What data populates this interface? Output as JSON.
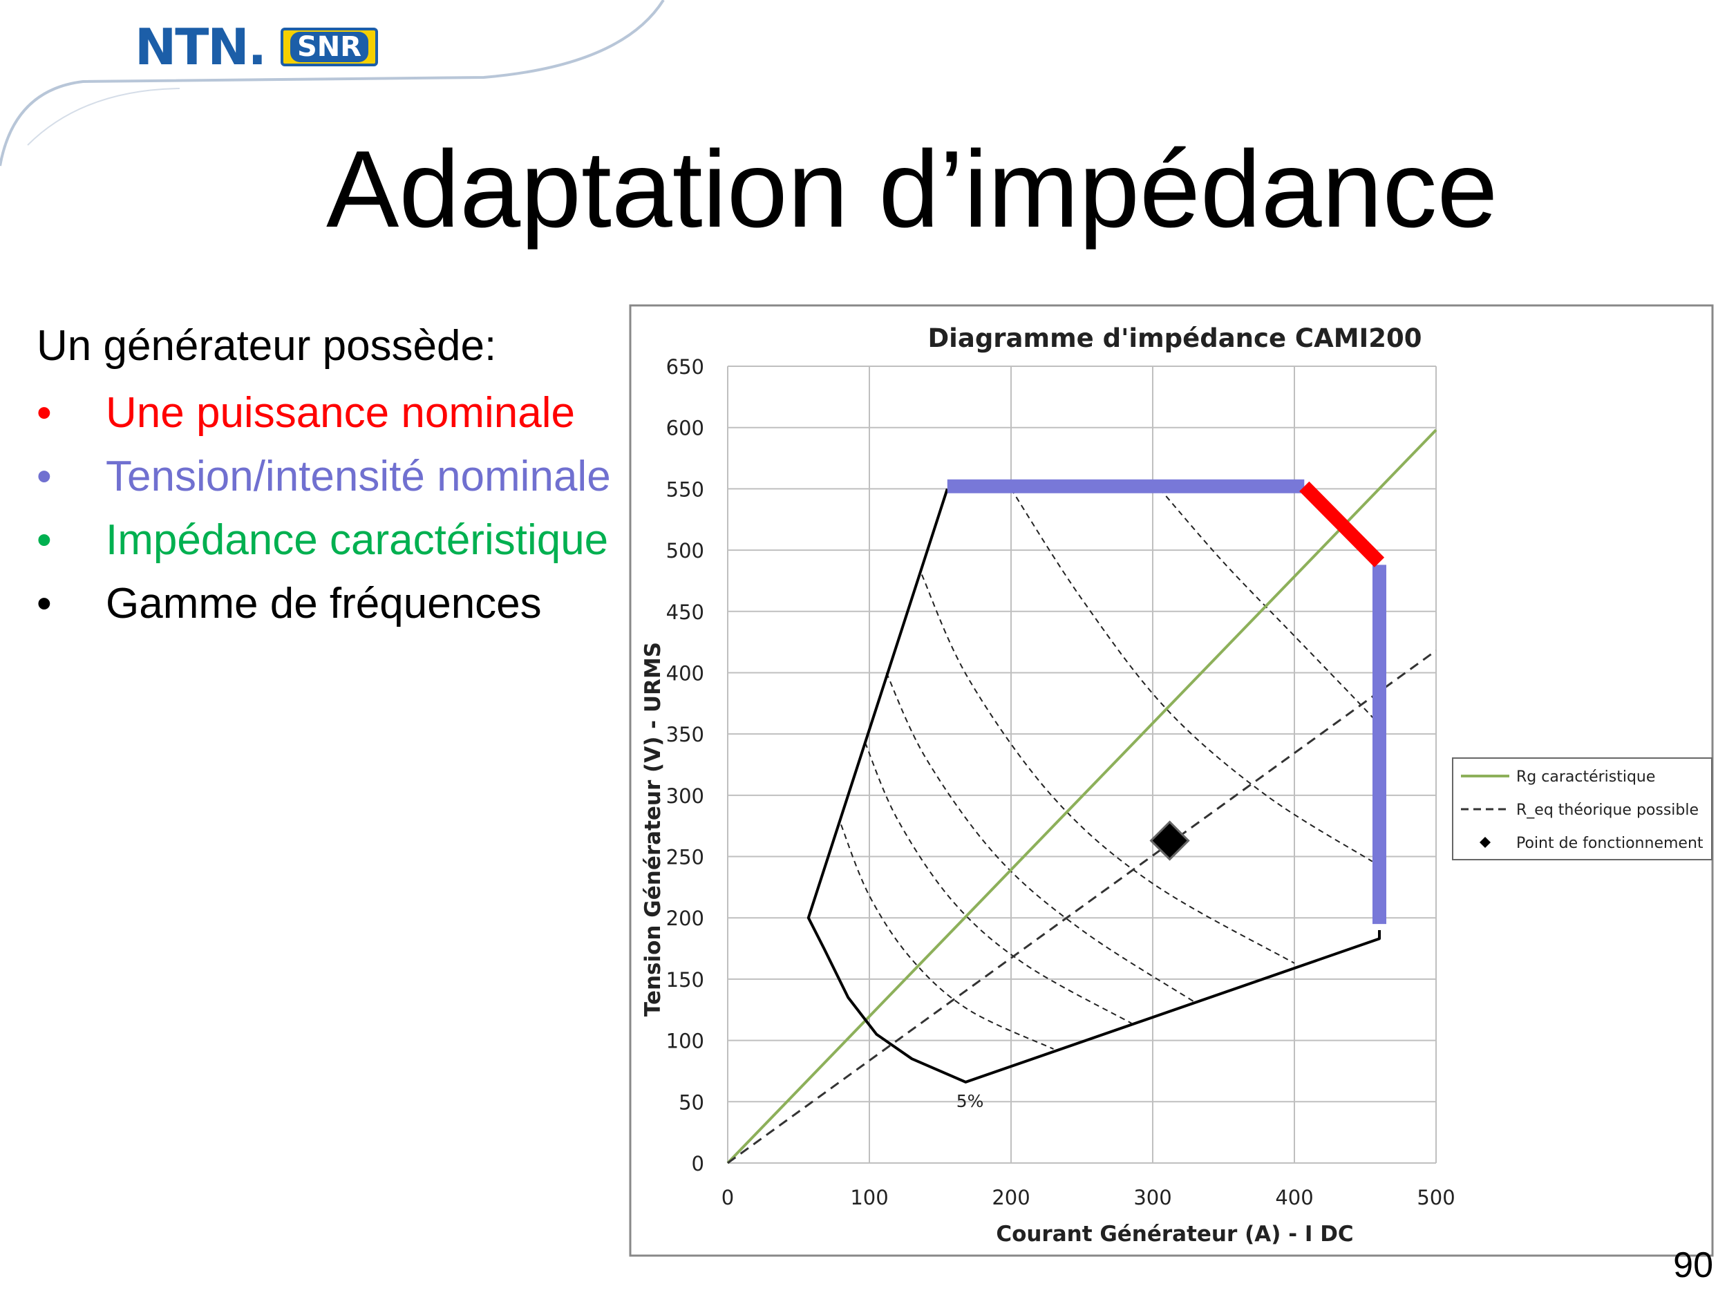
{
  "logo": {
    "ntn_text": "NTN.",
    "snr_text": "SNR"
  },
  "slide": {
    "title": "Adaptation d’impédance",
    "intro": "Un générateur possède:",
    "bullets": [
      {
        "text": "Une puissance nominale",
        "color": "#ff0000"
      },
      {
        "text": "Tension/intensité nominale",
        "color": "#7070d0"
      },
      {
        "text": "Impédance caractéristique",
        "color": "#00b050"
      },
      {
        "text": "Gamme de fréquences",
        "color": "#000000"
      }
    ],
    "bullet_glyph": "•",
    "page_number": "90"
  },
  "chart_data": {
    "type": "line",
    "title": "Diagramme d'impédance CAMI200",
    "xlabel": "Courant  Générateur (A) - I DC",
    "ylabel": "Tension  Générateur (V) - URMS",
    "xlim": [
      0,
      500
    ],
    "ylim": [
      0,
      650
    ],
    "xticks": [
      0,
      100,
      200,
      300,
      400,
      500
    ],
    "yticks": [
      0,
      50,
      100,
      150,
      200,
      250,
      300,
      350,
      400,
      450,
      500,
      550,
      600,
      650
    ],
    "grid": true,
    "legend_position": "right",
    "legend": [
      {
        "label": "Rg caractéristique",
        "style": "solid-line",
        "color": "#8db05a"
      },
      {
        "label": "R_eq théorique possible",
        "style": "dashed-line",
        "color": "#333333"
      },
      {
        "label": "Point de fonctionnement",
        "style": "diamond-marker",
        "color": "#000000"
      }
    ],
    "annotations": [
      {
        "text": "5%",
        "x": 172,
        "y": 48
      }
    ],
    "series": [
      {
        "name": "Rg caractéristique",
        "kind": "line",
        "color": "#8db05a",
        "points": [
          [
            0,
            0
          ],
          [
            500,
            598
          ]
        ]
      },
      {
        "name": "R_eq théorique possible",
        "kind": "dashed-line",
        "color": "#333333",
        "points": [
          [
            0,
            0
          ],
          [
            500,
            418
          ]
        ]
      },
      {
        "name": "Point de fonctionnement",
        "kind": "marker",
        "color": "#000000",
        "points": [
          [
            312,
            263
          ]
        ]
      }
    ],
    "operating_envelope": [
      [
        155,
        550
      ],
      [
        57,
        200
      ],
      [
        68,
        175
      ],
      [
        85,
        135
      ],
      [
        105,
        105
      ],
      [
        130,
        85
      ],
      [
        168,
        66
      ],
      [
        460,
        183
      ],
      [
        460,
        190
      ]
    ],
    "iso_curves": [
      [
        [
          80,
          276
        ],
        [
          100,
          218
        ],
        [
          130,
          166
        ],
        [
          170,
          125
        ],
        [
          230,
          93
        ]
      ],
      [
        [
          97,
          343
        ],
        [
          120,
          280
        ],
        [
          160,
          212
        ],
        [
          210,
          162
        ],
        [
          285,
          114
        ]
      ],
      [
        [
          112,
          400
        ],
        [
          140,
          330
        ],
        [
          190,
          250
        ],
        [
          250,
          190
        ],
        [
          330,
          131
        ]
      ],
      [
        [
          137,
          480
        ],
        [
          170,
          395
        ],
        [
          230,
          298
        ],
        [
          300,
          228
        ],
        [
          400,
          163
        ]
      ],
      [
        [
          200,
          550
        ],
        [
          250,
          460
        ],
        [
          310,
          370
        ],
        [
          380,
          300
        ],
        [
          455,
          246
        ]
      ],
      [
        [
          305,
          550
        ],
        [
          350,
          490
        ],
        [
          400,
          430
        ],
        [
          450,
          370
        ],
        [
          460,
          357
        ]
      ]
    ],
    "limits": [
      {
        "name": "Tension nominale",
        "color": "#7878d8",
        "points": [
          [
            155,
            552
          ],
          [
            407,
            552
          ]
        ]
      },
      {
        "name": "Intensité nominale",
        "color": "#7878d8",
        "points": [
          [
            460,
            488
          ],
          [
            460,
            195
          ]
        ]
      },
      {
        "name": "Puissance nominale",
        "color": "#ff0000",
        "points": [
          [
            407,
            552
          ],
          [
            460,
            490
          ]
        ]
      }
    ]
  }
}
